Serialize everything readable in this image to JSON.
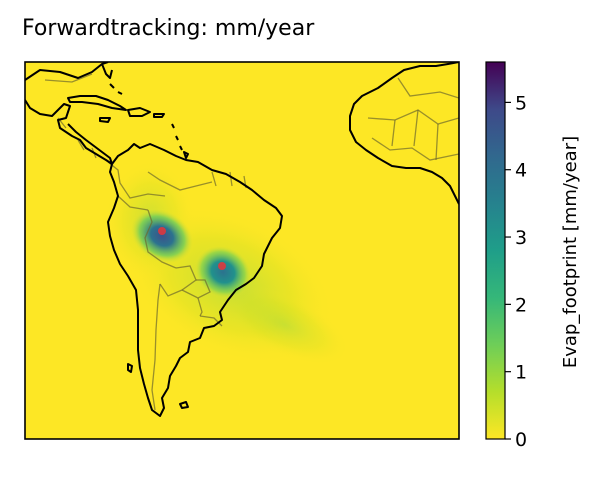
{
  "title": "Forwardtracking: mm/year",
  "colorbar": {
    "label": "Evap_footprint [mm/year]",
    "range": [
      0,
      5.6
    ],
    "ticks": [
      "0",
      "1",
      "2",
      "3",
      "4",
      "5"
    ],
    "colormap": "viridis (reversed)"
  },
  "map": {
    "background_color": "#fde725",
    "coastline_color": "#000000",
    "border_color": "#6e6a2c",
    "region": "South America / Caribbean / West Africa",
    "hotspots": [
      {
        "name": "northwest-hotspot",
        "value": 4.5
      },
      {
        "name": "southeast-hotspot",
        "value": 3.5
      }
    ],
    "source_marker_color": "#e8343a"
  },
  "colors": {
    "viridis_low": "#fde725",
    "viridis_mid": "#21918c",
    "viridis_high": "#440154"
  }
}
